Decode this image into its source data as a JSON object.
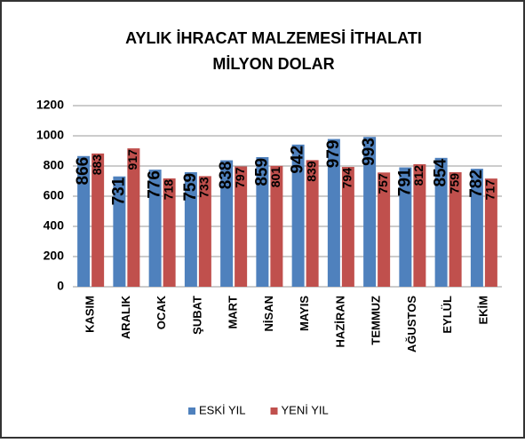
{
  "chart_data": {
    "type": "bar",
    "title": [
      "AYLIK İHRACAT MALZEMESİ İTHALATI",
      "MİLYON DOLAR"
    ],
    "categories": [
      "KASIM",
      "ARALIK",
      "OCAK",
      "ŞUBAT",
      "MART",
      "NİSAN",
      "MAYIS",
      "HAZİRAN",
      "TEMMUZ",
      "AĞUSTOS",
      "EYLÜL",
      "EKİM"
    ],
    "series": [
      {
        "name": "ESKİ YIL",
        "color": "#4f81bd",
        "values": [
          866,
          731,
          776,
          759,
          838,
          859,
          942,
          979,
          993,
          791,
          854,
          782
        ]
      },
      {
        "name": "YENİ YIL",
        "color": "#c0504d",
        "values": [
          883,
          917,
          718,
          733,
          797,
          801,
          839,
          794,
          757,
          812,
          759,
          717
        ]
      }
    ],
    "ylim": [
      0,
      1200
    ],
    "yticks": [
      0,
      200,
      400,
      600,
      800,
      1000,
      1200
    ],
    "grid": true,
    "legend": "bottom"
  }
}
